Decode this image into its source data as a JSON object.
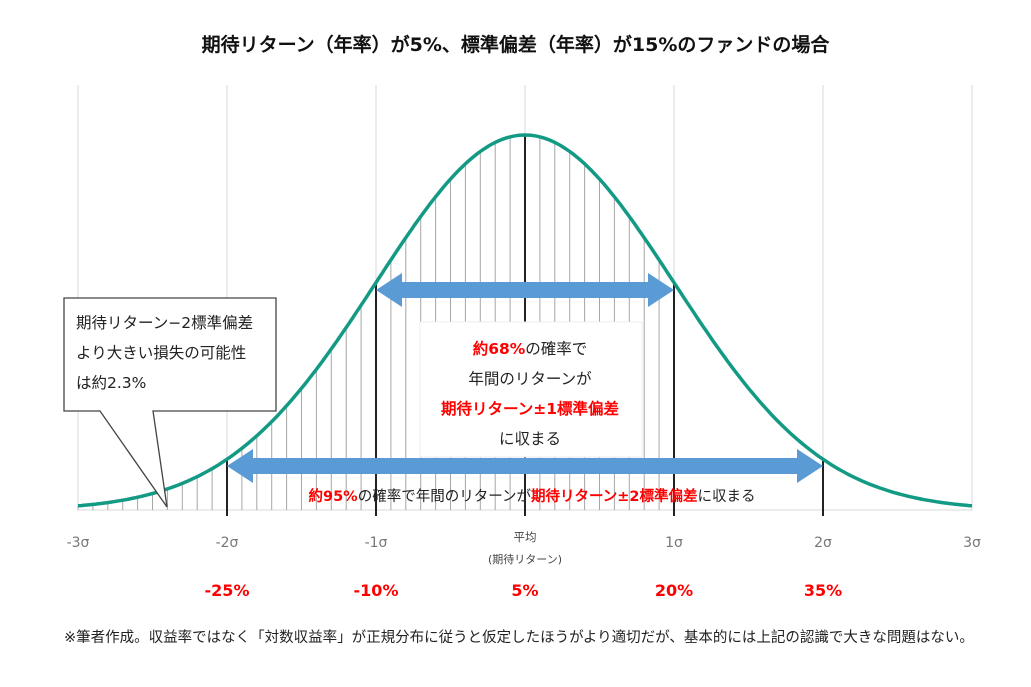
{
  "chart_data": {
    "type": "line",
    "title": "期待リターン（年率）が5%、標準偏差（年率）が15%のファンドの場合",
    "distribution": "normal",
    "mean_return_pct": 5,
    "stdev_pct": 15,
    "xlim": [
      -3,
      3
    ],
    "x_ticks": [
      {
        "sigma": -3,
        "label": "-3σ"
      },
      {
        "sigma": -2,
        "label": "-2σ",
        "return_label": "-25%"
      },
      {
        "sigma": -1,
        "label": "-1σ",
        "return_label": "-10%"
      },
      {
        "sigma": 0,
        "label": "平均",
        "sublabel": "(期待リターン)",
        "return_label": "5%"
      },
      {
        "sigma": 1,
        "label": "1σ",
        "return_label": "20%"
      },
      {
        "sigma": 2,
        "label": "2σ",
        "return_label": "35%"
      },
      {
        "sigma": 3,
        "label": "3σ"
      }
    ],
    "shaded_range_sigma": [
      -3,
      1
    ],
    "grid": true,
    "colors": {
      "curve": "#139a84",
      "arrow": "#5b9bd5",
      "highlight": "#ff0000",
      "grid": "#d9d9d9",
      "hatch": "#a6a6a6"
    },
    "annotations": {
      "one_sigma": {
        "range": [
          -1,
          1
        ],
        "lines": [
          [
            {
              "text": "約68%",
              "red": true
            },
            {
              "text": "の確率で",
              "red": false
            }
          ],
          [
            {
              "text": "年間のリターンが",
              "red": false
            }
          ],
          [
            {
              "text": "期待リターン±1標準偏差",
              "red": true
            }
          ],
          [
            {
              "text": "に収まる",
              "red": false
            }
          ]
        ]
      },
      "two_sigma": {
        "range": [
          -2,
          2
        ],
        "parts": [
          {
            "text": "約95%",
            "red": true
          },
          {
            "text": "の確率で年間のリターンが",
            "red": false
          },
          {
            "text": "期待リターン±2標準偏差",
            "red": true
          },
          {
            "text": "に収まる",
            "red": false
          }
        ]
      },
      "callout": {
        "lines": [
          "期待リターン−2標準偏差",
          "より大きい損失の可能性",
          "は約2.3%"
        ]
      }
    }
  },
  "footnote": "※筆者作成。収益率ではなく「対数収益率」が正規分布に従うと仮定したほうがより適切だが、基本的には上記の認識で大きな問題はない。"
}
